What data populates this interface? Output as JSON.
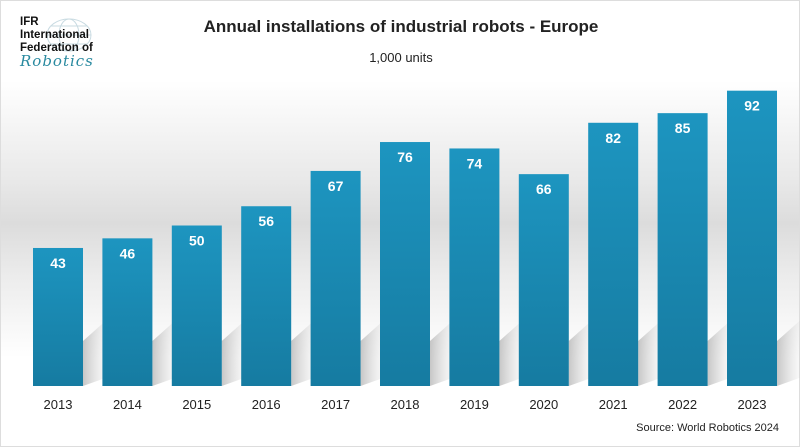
{
  "logo": {
    "line1": "IFR",
    "line2": "International",
    "line3": "Federation of",
    "line4": "Robotics"
  },
  "colors": {
    "bar": "#1b8fba",
    "bar_dark": "#177fa6",
    "label": "#ffffff"
  },
  "chart_data": {
    "type": "bar",
    "title": "Annual installations of industrial robots - Europe",
    "subtitle": "1,000 units",
    "categories": [
      "2013",
      "2014",
      "2015",
      "2016",
      "2017",
      "2018",
      "2019",
      "2020",
      "2021",
      "2022",
      "2023"
    ],
    "values": [
      43,
      46,
      50,
      56,
      67,
      76,
      74,
      66,
      82,
      85,
      92
    ],
    "ylim": [
      0,
      100
    ],
    "grid": false,
    "source": "Source: World Robotics 2024"
  }
}
